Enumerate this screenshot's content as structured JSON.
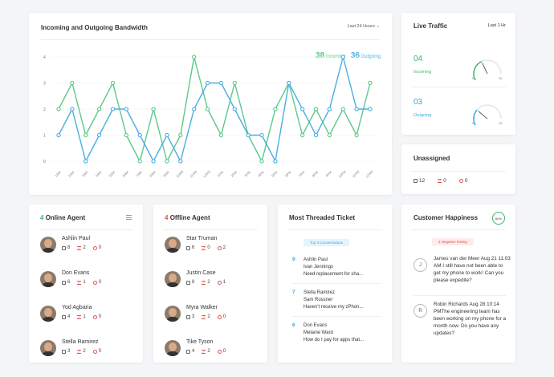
{
  "bandwidth": {
    "title": "Incoming and Outgoing Bandwidth",
    "range": "Last 24 Hours",
    "incoming_count": "38",
    "incoming_label": "Incoming",
    "outgoing_count": "36",
    "outgoing_label": "Outgoing",
    "colors": {
      "incoming": "#5cc98a",
      "outgoing": "#4aaee3"
    }
  },
  "chart_data": {
    "type": "line",
    "categories": [
      "1AM",
      "2AM",
      "3AM",
      "4AM",
      "5AM",
      "6AM",
      "7AM",
      "8AM",
      "9AM",
      "10AM",
      "11AM",
      "12PM",
      "1PM",
      "2PM",
      "3PM",
      "4PM",
      "5PM",
      "6PM",
      "7PM",
      "8PM",
      "9PM",
      "10PM",
      "11PM",
      "12AM"
    ],
    "series": [
      {
        "name": "Incoming",
        "values": [
          2,
          3,
          1,
          2,
          3,
          1,
          0,
          2,
          0,
          1,
          4,
          2,
          1,
          3,
          1,
          0,
          2,
          3,
          1,
          2,
          1,
          2,
          1,
          3
        ]
      },
      {
        "name": "Outgoing",
        "values": [
          1,
          2,
          0,
          1,
          2,
          2,
          1,
          0,
          1,
          0,
          2,
          3,
          3,
          2,
          1,
          1,
          0,
          3,
          2,
          1,
          2,
          4,
          2,
          2
        ]
      }
    ],
    "yticks": [
      "0",
      "1",
      "2",
      "3",
      "4"
    ],
    "ylim": [
      0,
      4
    ],
    "grid": true
  },
  "live_traffic": {
    "title": "Live Traffic",
    "range": "Last 1 Hr",
    "incoming_value": "04",
    "incoming_label": "Incoming",
    "outgoing_value": "03",
    "outgoing_label": "Outgoing",
    "gauge_min": "0",
    "gauge_max": "10",
    "incoming_level": 0.4,
    "outgoing_level": 0.3
  },
  "unassigned": {
    "title": "Unassigned",
    "tickets": "12",
    "overdue": "0",
    "late": "0"
  },
  "online": {
    "count": "4",
    "label": "Online Agent",
    "agents": [
      {
        "name": "Ashlin Paul",
        "a": "8",
        "b": "2",
        "c": "0"
      },
      {
        "name": "Don Evans",
        "a": "6",
        "b": "1",
        "c": "0"
      },
      {
        "name": "Yod Agbaria",
        "a": "4",
        "b": "1",
        "c": "0"
      },
      {
        "name": "Stella Ramirez",
        "a": "3",
        "b": "2",
        "c": "0"
      }
    ]
  },
  "offline": {
    "count": "4",
    "label": "Offline Agent",
    "agents": [
      {
        "name": "Star Truman",
        "a": "6",
        "b": "0",
        "c": "2"
      },
      {
        "name": "Justin Case",
        "a": "8",
        "b": "2",
        "c": "1"
      },
      {
        "name": "Myra Walker",
        "a": "3",
        "b": "2",
        "c": "0"
      },
      {
        "name": "Tike Tyson",
        "a": "4",
        "b": "2",
        "c": "0"
      }
    ]
  },
  "threaded": {
    "title": "Most Threaded Ticket",
    "pill": "Top 3 Conversations",
    "items": [
      {
        "n": "9",
        "name": "Ashlin Paul",
        "agent": "Ivan Jennings",
        "msg": "Need replacement for sha..."
      },
      {
        "n": "7",
        "name": "Stella Ramirez",
        "agent": "Sam Rossner",
        "msg": "Haven't receive my zPhon..."
      },
      {
        "n": "6",
        "name": "Don Evans",
        "agent": "Melanie Ward",
        "msg": "How do I pay for apps that..."
      }
    ]
  },
  "happiness": {
    "title": "Customer Happiness",
    "badge": "60%",
    "pill": "2  Negative Rating",
    "items": [
      {
        "initial": "J",
        "text": "James van der Meer Aug 21 11:03 AM I still have not been able to get my phone to work! Can you please expedite?"
      },
      {
        "initial": "R",
        "text": "Robin Richards  Aug 28 10:14 PMThe engineering team has been working on my phone for a month now. Do you have any updates?"
      }
    ]
  }
}
